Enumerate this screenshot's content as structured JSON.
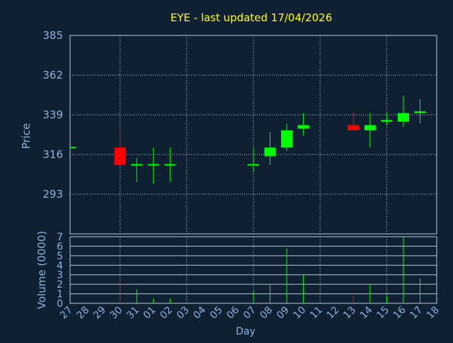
{
  "chart_data": {
    "type": "candlestick",
    "title": "EYE - last updated 17/04/2026",
    "xlabel": "Day",
    "ylabel_price": "Price",
    "ylabel_volume": "Volume (0000)",
    "price_ylim": [
      270,
      385
    ],
    "price_ticks": [
      293,
      316,
      339,
      362,
      385
    ],
    "volume_ylim": [
      0,
      7
    ],
    "volume_ticks": [
      0,
      1,
      2,
      3,
      4,
      5,
      6,
      7
    ],
    "grid": true,
    "days": [
      "27",
      "28",
      "29",
      "30",
      "31",
      "01",
      "02",
      "03",
      "04",
      "05",
      "06",
      "07",
      "08",
      "09",
      "10",
      "11",
      "12",
      "13",
      "14",
      "15",
      "16",
      "17",
      "18"
    ],
    "candles": [
      {
        "day": "27",
        "open": 320,
        "high": 320,
        "low": 320,
        "close": 320
      },
      {
        "day": "30",
        "open": 320,
        "high": 331,
        "low": 310,
        "close": 310
      },
      {
        "day": "31",
        "open": 310,
        "high": 314,
        "low": 300,
        "close": 310
      },
      {
        "day": "01",
        "open": 310,
        "high": 320,
        "low": 299,
        "close": 310
      },
      {
        "day": "02",
        "open": 310,
        "high": 320,
        "low": 300,
        "close": 310
      },
      {
        "day": "07",
        "open": 310,
        "high": 320,
        "low": 306,
        "close": 310
      },
      {
        "day": "08",
        "open": 315,
        "high": 329,
        "low": 310,
        "close": 320
      },
      {
        "day": "09",
        "open": 320,
        "high": 334,
        "low": 318,
        "close": 330
      },
      {
        "day": "10",
        "open": 331,
        "high": 340,
        "low": 327,
        "close": 333
      },
      {
        "day": "13",
        "open": 333,
        "high": 341,
        "low": 330,
        "close": 330
      },
      {
        "day": "14",
        "open": 330,
        "high": 340,
        "low": 320,
        "close": 333
      },
      {
        "day": "15",
        "open": 335,
        "high": 340,
        "low": 333,
        "close": 336
      },
      {
        "day": "16",
        "open": 335,
        "high": 350,
        "low": 332,
        "close": 340
      },
      {
        "day": "17",
        "open": 340,
        "high": 348,
        "low": 334,
        "close": 341
      }
    ],
    "volume": [
      {
        "day": "30",
        "value": 2.5,
        "direction": "down"
      },
      {
        "day": "31",
        "value": 1.5,
        "direction": "up"
      },
      {
        "day": "01",
        "value": 0.5,
        "direction": "up"
      },
      {
        "day": "02",
        "value": 0.5,
        "direction": "up"
      },
      {
        "day": "07",
        "value": 1.3,
        "direction": "up"
      },
      {
        "day": "08",
        "value": 2.0,
        "direction": "up"
      },
      {
        "day": "09",
        "value": 5.8,
        "direction": "up"
      },
      {
        "day": "10",
        "value": 3.0,
        "direction": "up"
      },
      {
        "day": "13",
        "value": 0.8,
        "direction": "down"
      },
      {
        "day": "14",
        "value": 2.0,
        "direction": "up"
      },
      {
        "day": "15",
        "value": 0.8,
        "direction": "up"
      },
      {
        "day": "16",
        "value": 7.0,
        "direction": "up"
      },
      {
        "day": "17",
        "value": 2.6,
        "direction": "up"
      }
    ],
    "colors": {
      "background": "#102033",
      "text": "#8fb0d8",
      "title": "#ffff00",
      "grid": "#b8c8d8",
      "up": "#00ff00",
      "down": "#ff0000"
    }
  }
}
